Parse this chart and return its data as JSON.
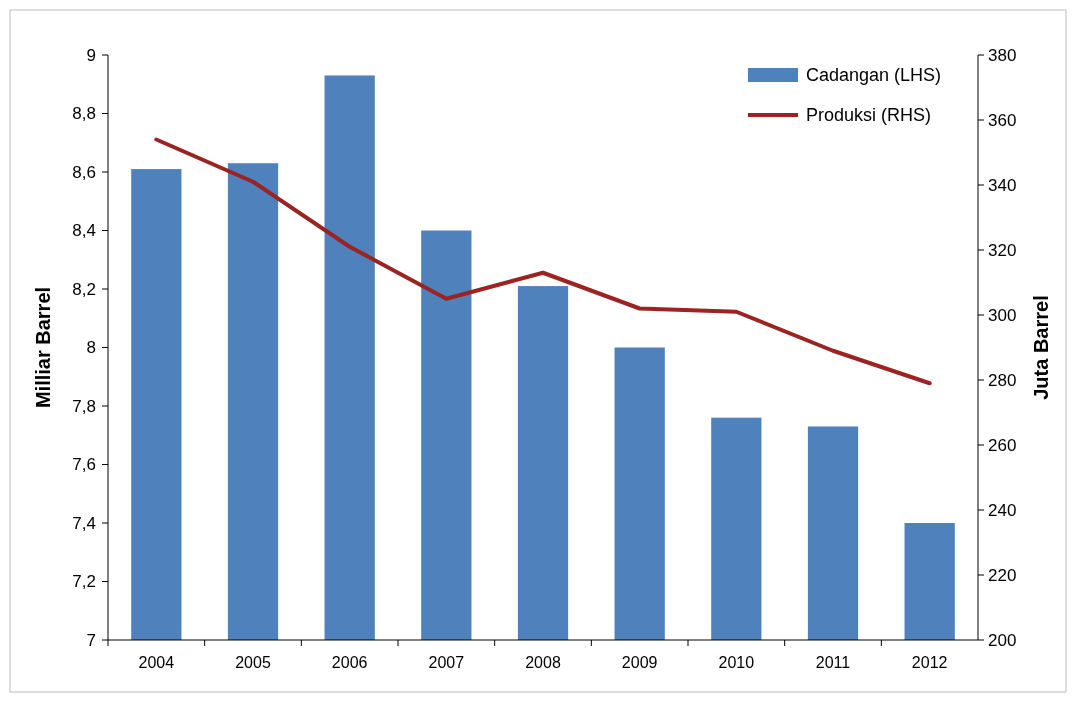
{
  "chart_data": {
    "type": "bar",
    "ylabel": "Milliar Barrel",
    "y2label": "Juta Barrel",
    "categories": [
      "2004",
      "2005",
      "2006",
      "2007",
      "2008",
      "2009",
      "2010",
      "2011",
      "2012"
    ],
    "series": [
      {
        "name": "Cadangan (LHS)",
        "color": "#4f81bd",
        "values": [
          8.61,
          8.63,
          8.93,
          8.4,
          8.21,
          8.0,
          7.76,
          7.73,
          7.4
        ]
      },
      {
        "name": "Produksi (RHS)",
        "type": "line",
        "axis": "y2",
        "color": "#9b2322",
        "values": [
          354,
          341,
          321,
          305,
          313,
          302,
          301,
          289,
          279
        ]
      }
    ],
    "ylim": [
      7,
      9
    ],
    "yticks": [
      7,
      {
        "value": 7.2,
        "label": "7,2"
      },
      {
        "value": 7.4,
        "label": "7,4"
      },
      {
        "value": 7.6,
        "label": "7,6"
      },
      {
        "value": 7.8,
        "label": "7,8"
      },
      8,
      {
        "value": 8.2,
        "label": "8,2"
      },
      {
        "value": 8.4,
        "label": "8,4"
      },
      {
        "value": 8.6,
        "label": "8,6"
      },
      {
        "value": 8.8,
        "label": "8,8"
      },
      9
    ],
    "y2lim": [
      200,
      380
    ],
    "y2ticks": [
      200,
      220,
      240,
      260,
      280,
      300,
      320,
      340,
      360,
      380
    ],
    "legend": "top right",
    "marker": "none",
    "line_style": "solid"
  }
}
